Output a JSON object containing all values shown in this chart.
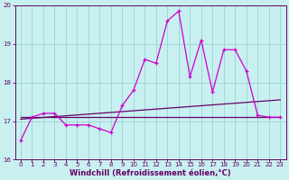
{
  "xlabel": "Windchill (Refroidissement éolien,°C)",
  "bg_color": "#c8f0f0",
  "grid_color": "#a0d8d8",
  "line_color": "#cc00cc",
  "line_color2": "#660066",
  "x_hours": [
    0,
    1,
    2,
    3,
    4,
    5,
    6,
    7,
    8,
    9,
    10,
    11,
    12,
    13,
    14,
    15,
    16,
    17,
    18,
    19,
    20,
    21,
    22,
    23
  ],
  "y_series1": [
    16.5,
    17.1,
    17.2,
    17.2,
    16.9,
    16.9,
    16.9,
    16.8,
    16.7,
    17.4,
    17.8,
    18.6,
    18.5,
    19.6,
    19.85,
    18.15,
    19.1,
    17.75,
    18.85,
    18.85,
    18.3,
    17.15,
    17.1,
    17.1
  ],
  "y_flat": 17.1,
  "y_trend_start": 17.05,
  "y_trend_end": 17.55,
  "ylim": [
    16.0,
    20.0
  ],
  "xlim": [
    -0.5,
    23.5
  ],
  "yticks": [
    16,
    17,
    18,
    19,
    20
  ],
  "xtick_labels": [
    "0",
    "1",
    "2",
    "3",
    "4",
    "5",
    "6",
    "7",
    "8",
    "9",
    "10",
    "11",
    "12",
    "13",
    "14",
    "15",
    "16",
    "17",
    "18",
    "19",
    "20",
    "21",
    "22",
    "23"
  ],
  "font_color": "#660066",
  "tick_fontsize": 5.0,
  "xlabel_fontsize": 6.0
}
